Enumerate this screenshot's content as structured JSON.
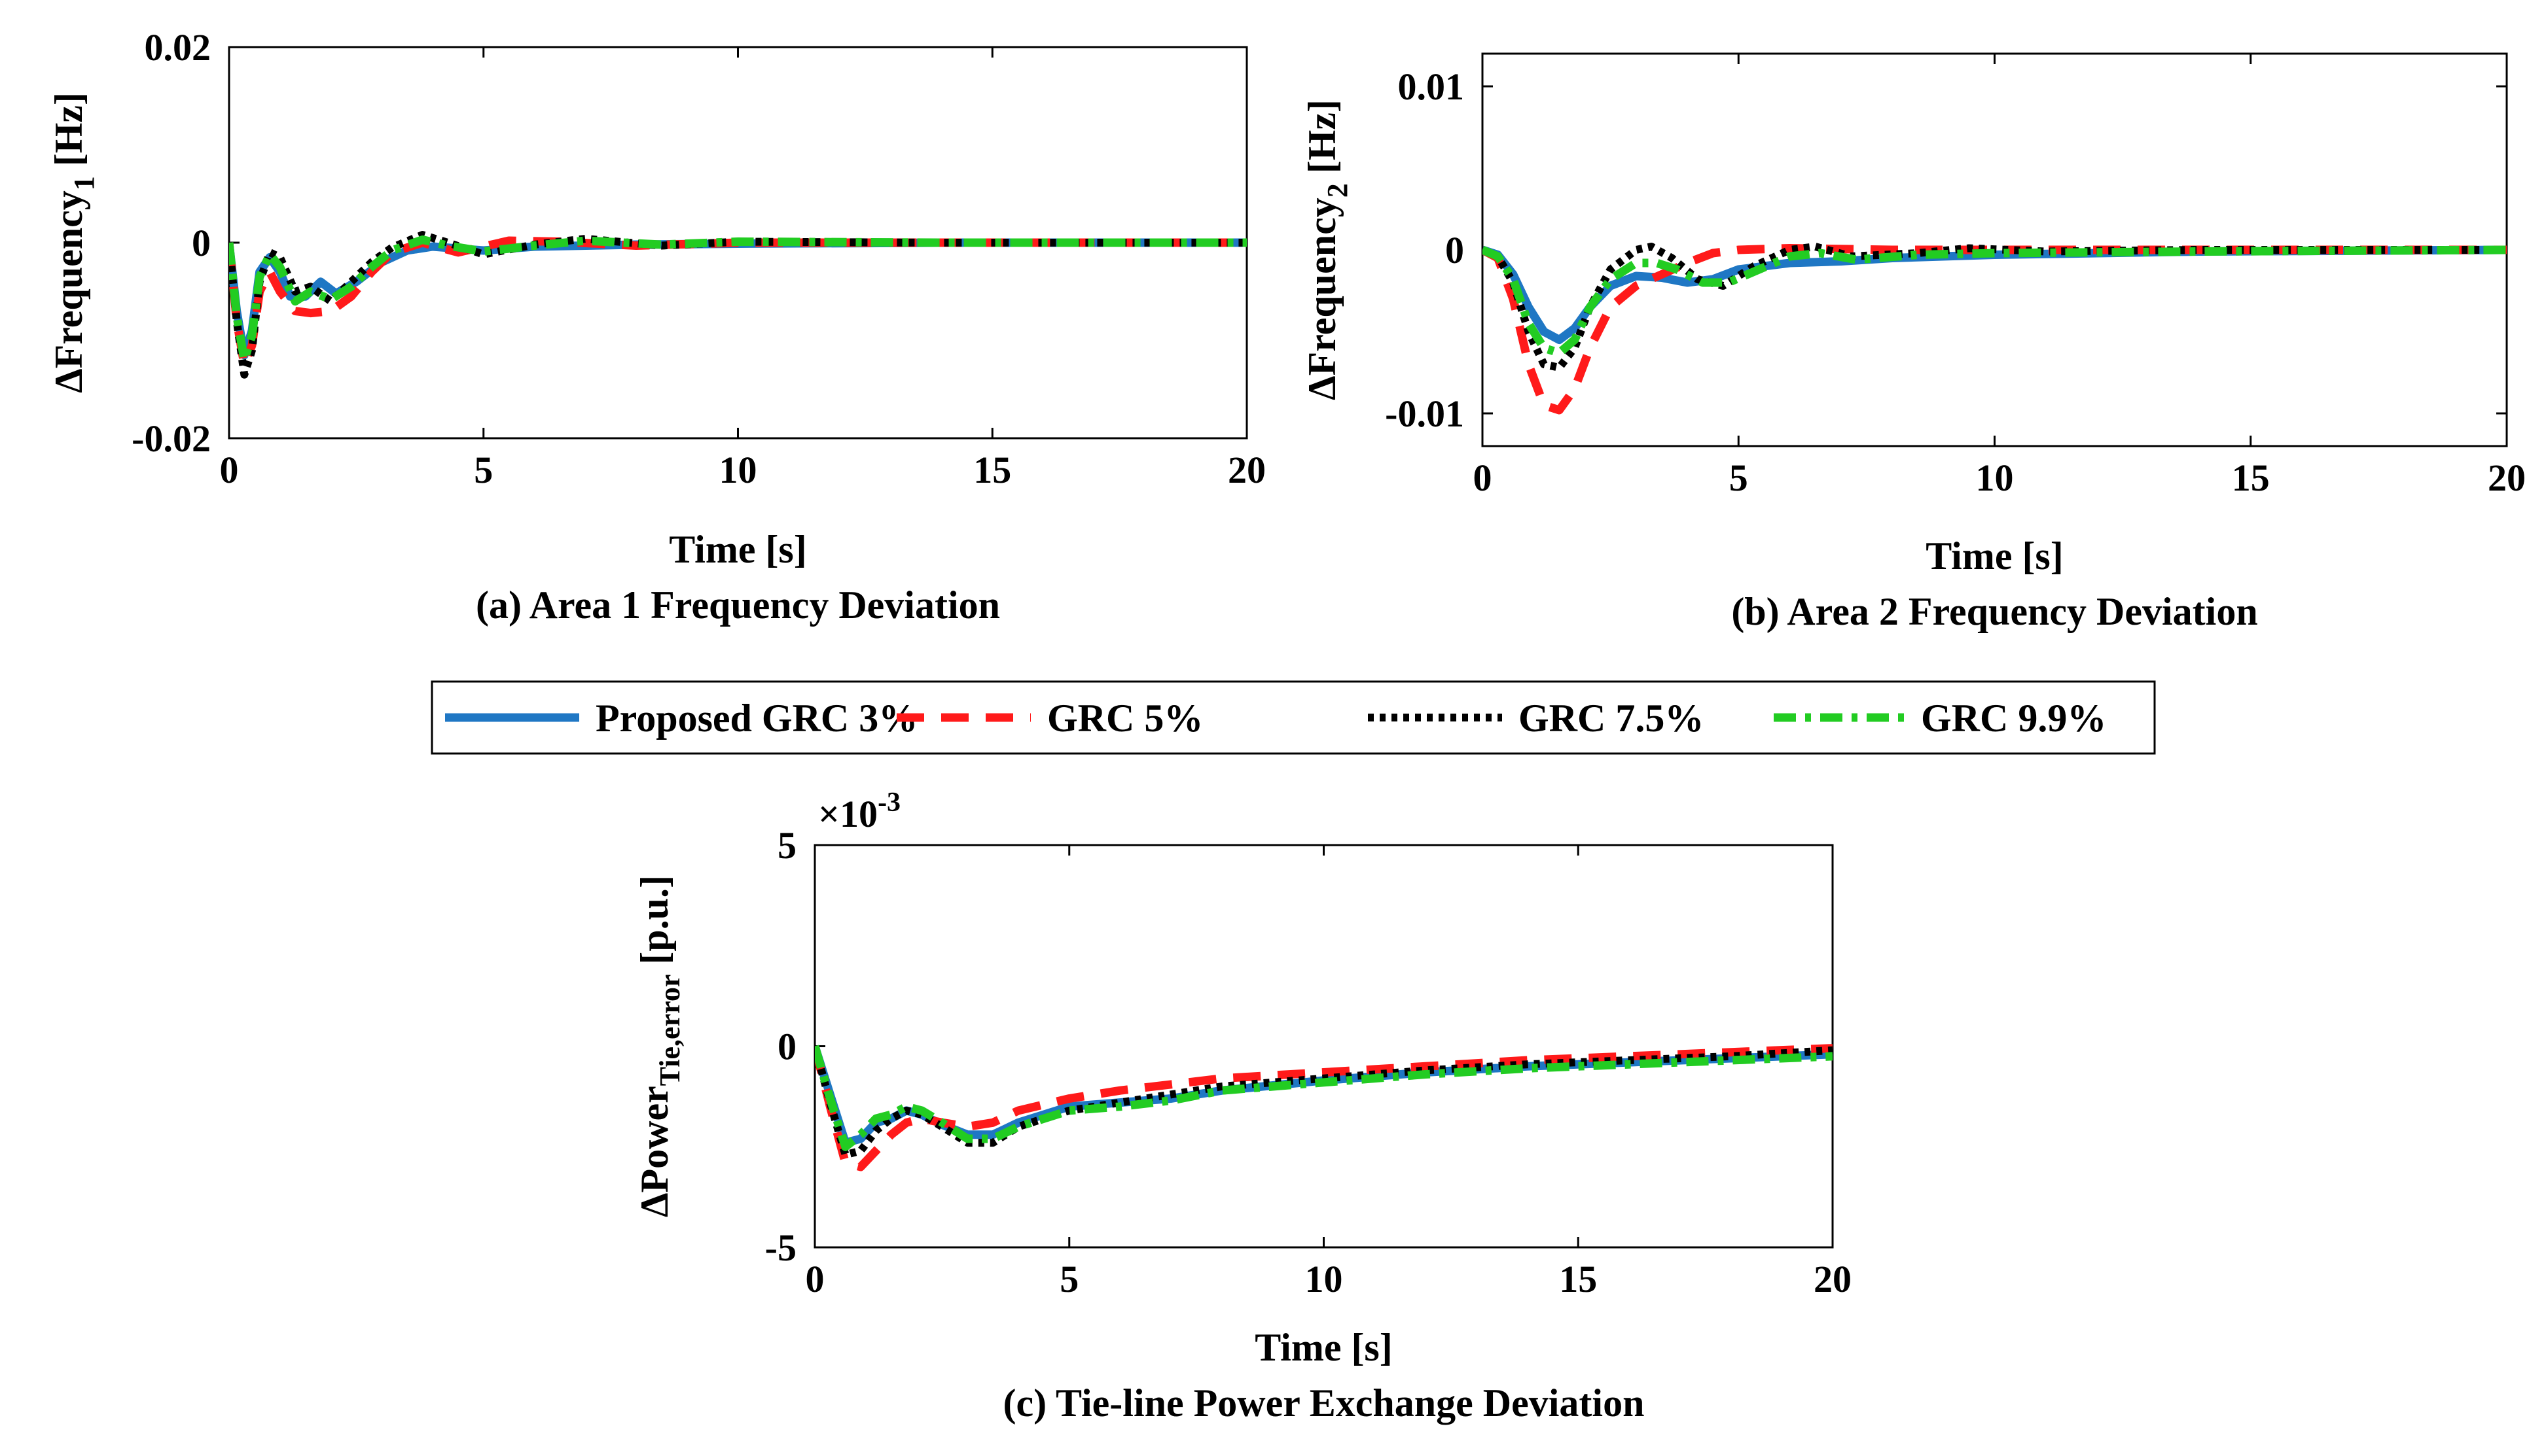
{
  "colors": {
    "proposed": "#1f77c4",
    "grc5": "#ff1a1a",
    "grc75": "#000000",
    "grc99": "#22cc22"
  },
  "legend": {
    "items": [
      {
        "label": "Proposed GRC 3%",
        "style": "solid",
        "color": "#1f77c4"
      },
      {
        "label": "GRC 5%",
        "style": "dashed",
        "color": "#ff1a1a"
      },
      {
        "label": "GRC 7.5%",
        "style": "dotted",
        "color": "#000000"
      },
      {
        "label": "GRC 9.9%",
        "style": "dashdot",
        "color": "#22cc22"
      }
    ]
  },
  "chart_data": [
    {
      "type": "line",
      "title": "(a) Area 1 Frequency Deviation",
      "xlabel": "Time [s]",
      "ylabel": "ΔFrequency",
      "ylabel_sub": "1",
      "ylabel_unit": " [Hz]",
      "xlim": [
        0,
        20
      ],
      "ylim": [
        -0.02,
        0.02
      ],
      "xticks": [
        0,
        5,
        10,
        15,
        20
      ],
      "xtick_labels": [
        "0",
        "5",
        "10",
        "15",
        "20"
      ],
      "yticks": [
        -0.02,
        0,
        0.02
      ],
      "ytick_labels": [
        "-0.02",
        "0",
        "0.02"
      ],
      "exponent_label": "",
      "series": [
        {
          "name": "Proposed GRC 3%",
          "x": [
            0,
            0.15,
            0.3,
            0.45,
            0.6,
            0.8,
            1.0,
            1.2,
            1.5,
            1.8,
            2.1,
            2.5,
            3,
            3.5,
            4,
            5,
            6,
            8,
            10,
            14,
            20
          ],
          "y": [
            0,
            -0.007,
            -0.0115,
            -0.009,
            -0.003,
            -0.0015,
            -0.003,
            -0.0055,
            -0.0055,
            -0.004,
            -0.0052,
            -0.004,
            -0.002,
            -0.0008,
            -0.0004,
            -0.0008,
            -0.0004,
            -0.0002,
            -0.0001,
            0,
            0
          ]
        },
        {
          "name": "GRC 5%",
          "x": [
            0,
            0.15,
            0.3,
            0.45,
            0.6,
            0.8,
            1.0,
            1.3,
            1.6,
            2.0,
            2.4,
            2.8,
            3.2,
            3.8,
            4.5,
            5.5,
            6.5,
            8,
            10,
            14,
            20
          ],
          "y": [
            0,
            -0.008,
            -0.0125,
            -0.0105,
            -0.005,
            -0.003,
            -0.005,
            -0.007,
            -0.0072,
            -0.007,
            -0.0055,
            -0.003,
            -0.001,
            0,
            -0.001,
            0.0002,
            0.0001,
            -0.0003,
            0,
            0,
            0
          ]
        },
        {
          "name": "GRC 7.5%",
          "x": [
            0,
            0.15,
            0.3,
            0.45,
            0.6,
            0.8,
            1.0,
            1.3,
            1.6,
            2.0,
            2.4,
            2.8,
            3.2,
            3.8,
            4.3,
            5.0,
            6.0,
            7.0,
            8.5,
            10,
            14,
            20
          ],
          "y": [
            0,
            -0.008,
            -0.0135,
            -0.011,
            -0.004,
            -0.001,
            -0.0015,
            -0.005,
            -0.0045,
            -0.006,
            -0.004,
            -0.002,
            -0.0005,
            0.0008,
            0,
            -0.0012,
            -0.0002,
            0.0004,
            -0.0003,
            0.0001,
            0,
            0
          ]
        },
        {
          "name": "GRC 9.9%",
          "x": [
            0,
            0.15,
            0.3,
            0.45,
            0.6,
            0.8,
            1.0,
            1.3,
            1.6,
            2.0,
            2.4,
            2.8,
            3.2,
            3.8,
            4.3,
            5.0,
            6.0,
            7.0,
            8.5,
            10,
            14,
            20
          ],
          "y": [
            0,
            -0.0075,
            -0.012,
            -0.0095,
            -0.0035,
            -0.0012,
            -0.0025,
            -0.006,
            -0.005,
            -0.0058,
            -0.0045,
            -0.0025,
            -0.0008,
            0.0003,
            -0.0003,
            -0.0009,
            -0.0003,
            0.0002,
            -0.0002,
            0.0001,
            0,
            0
          ]
        }
      ]
    },
    {
      "type": "line",
      "title": "(b) Area 2 Frequency Deviation",
      "xlabel": "Time [s]",
      "ylabel": "ΔFrequency",
      "ylabel_sub": "2",
      "ylabel_unit": " [Hz]",
      "xlim": [
        0,
        20
      ],
      "ylim": [
        -0.012,
        0.012
      ],
      "xticks": [
        0,
        5,
        10,
        15,
        20
      ],
      "xtick_labels": [
        "0",
        "5",
        "10",
        "15",
        "20"
      ],
      "yticks": [
        -0.01,
        0,
        0.01
      ],
      "ytick_labels": [
        "-0.01",
        "0",
        "0.01"
      ],
      "exponent_label": "",
      "series": [
        {
          "name": "Proposed GRC 3%",
          "x": [
            0,
            0.3,
            0.6,
            0.9,
            1.2,
            1.5,
            1.8,
            2.1,
            2.5,
            3.0,
            3.5,
            4.0,
            4.5,
            5.0,
            6.0,
            7.0,
            8.0,
            10,
            14,
            20
          ],
          "y": [
            0,
            -0.0003,
            -0.0015,
            -0.0035,
            -0.005,
            -0.0055,
            -0.0048,
            -0.0035,
            -0.0022,
            -0.0016,
            -0.0017,
            -0.002,
            -0.0018,
            -0.0012,
            -0.0008,
            -0.0007,
            -0.0005,
            -0.0003,
            -0.0001,
            0
          ]
        },
        {
          "name": "GRC 5%",
          "x": [
            0,
            0.3,
            0.6,
            0.9,
            1.2,
            1.5,
            1.8,
            2.1,
            2.5,
            3.0,
            3.5,
            4.0,
            4.5,
            5.0,
            6.0,
            8.0,
            10,
            14,
            20
          ],
          "y": [
            0,
            -0.0005,
            -0.003,
            -0.007,
            -0.0095,
            -0.0098,
            -0.0085,
            -0.006,
            -0.0035,
            -0.0022,
            -0.0015,
            -0.0008,
            -0.0002,
            0,
            0.0001,
            0,
            0,
            0,
            0
          ]
        },
        {
          "name": "GRC 7.5%",
          "x": [
            0,
            0.3,
            0.6,
            0.9,
            1.2,
            1.5,
            1.8,
            2.1,
            2.5,
            3.0,
            3.3,
            3.7,
            4.2,
            4.7,
            5.3,
            6.0,
            6.5,
            7.2,
            8.5,
            9.5,
            11,
            14,
            20
          ],
          "y": [
            0,
            -0.0004,
            -0.002,
            -0.005,
            -0.007,
            -0.0072,
            -0.006,
            -0.0035,
            -0.0012,
            0,
            0.0002,
            -0.0005,
            -0.0018,
            -0.0022,
            -0.001,
            0,
            0.0002,
            -0.0004,
            -0.0002,
            0.0001,
            -0.0001,
            0,
            0
          ]
        },
        {
          "name": "GRC 9.9%",
          "x": [
            0,
            0.3,
            0.6,
            0.9,
            1.2,
            1.5,
            1.8,
            2.1,
            2.5,
            3.0,
            3.4,
            3.8,
            4.3,
            4.8,
            5.4,
            6.0,
            6.6,
            7.3,
            8.5,
            10,
            14,
            20
          ],
          "y": [
            0,
            -0.0004,
            -0.0018,
            -0.0045,
            -0.006,
            -0.0063,
            -0.0055,
            -0.0035,
            -0.0018,
            -0.0008,
            -0.0008,
            -0.0012,
            -0.002,
            -0.002,
            -0.0012,
            -0.0004,
            -0.0002,
            -0.0006,
            -0.0003,
            -0.0002,
            -0.0001,
            0
          ]
        }
      ]
    },
    {
      "type": "line",
      "title": "(c) Tie-line Power Exchange Deviation",
      "xlabel": "Time [s]",
      "ylabel": "ΔPower",
      "ylabel_sub": "Tie,error",
      "ylabel_unit": " [p.u.]",
      "xlim": [
        0,
        20
      ],
      "ylim": [
        -5,
        5
      ],
      "xticks": [
        0,
        5,
        10,
        15,
        20
      ],
      "xtick_labels": [
        "0",
        "5",
        "10",
        "15",
        "20"
      ],
      "yticks": [
        -5,
        0,
        5
      ],
      "ytick_labels": [
        "-5",
        "0",
        "5"
      ],
      "exponent_label": "×10",
      "exponent_power": "-3",
      "series": [
        {
          "name": "Proposed GRC 3%",
          "x": [
            0,
            0.3,
            0.6,
            0.9,
            1.2,
            1.5,
            1.8,
            2.1,
            2.5,
            3.0,
            3.5,
            4.0,
            5.0,
            6.0,
            7.0,
            8.0,
            10,
            12,
            14,
            16,
            18,
            20
          ],
          "y": [
            0,
            -1.2,
            -2.4,
            -2.3,
            -1.9,
            -1.8,
            -1.6,
            -1.7,
            -1.95,
            -2.2,
            -2.2,
            -1.9,
            -1.5,
            -1.4,
            -1.3,
            -1.1,
            -0.85,
            -0.65,
            -0.5,
            -0.4,
            -0.3,
            -0.2
          ]
        },
        {
          "name": "GRC 5%",
          "x": [
            0,
            0.3,
            0.6,
            0.9,
            1.2,
            1.5,
            1.8,
            2.1,
            2.5,
            3.0,
            3.5,
            4.0,
            5.0,
            6.0,
            7.0,
            8.0,
            10,
            12,
            14,
            16,
            18,
            20
          ],
          "y": [
            0,
            -1.5,
            -2.9,
            -3.0,
            -2.6,
            -2.2,
            -1.9,
            -1.8,
            -1.9,
            -2.0,
            -1.9,
            -1.6,
            -1.3,
            -1.1,
            -0.95,
            -0.8,
            -0.65,
            -0.5,
            -0.35,
            -0.25,
            -0.15,
            -0.05
          ]
        },
        {
          "name": "GRC 7.5%",
          "x": [
            0,
            0.3,
            0.6,
            0.9,
            1.2,
            1.5,
            1.8,
            2.1,
            2.5,
            3.0,
            3.5,
            4.0,
            5.0,
            6.0,
            7.0,
            8.0,
            10,
            12,
            14,
            16,
            18,
            20
          ],
          "y": [
            0,
            -1.4,
            -2.7,
            -2.6,
            -2.1,
            -1.8,
            -1.6,
            -1.7,
            -2.0,
            -2.4,
            -2.4,
            -2.0,
            -1.6,
            -1.4,
            -1.2,
            -1.0,
            -0.8,
            -0.6,
            -0.45,
            -0.35,
            -0.25,
            -0.1
          ]
        },
        {
          "name": "GRC 9.9%",
          "x": [
            0,
            0.3,
            0.6,
            0.9,
            1.2,
            1.5,
            1.8,
            2.1,
            2.5,
            3.0,
            3.5,
            4.0,
            5.0,
            6.0,
            7.0,
            8.0,
            10,
            12,
            14,
            16,
            18,
            20
          ],
          "y": [
            0,
            -1.3,
            -2.5,
            -2.2,
            -1.8,
            -1.7,
            -1.5,
            -1.6,
            -1.9,
            -2.3,
            -2.3,
            -2.0,
            -1.6,
            -1.5,
            -1.35,
            -1.1,
            -0.9,
            -0.7,
            -0.55,
            -0.45,
            -0.35,
            -0.25
          ]
        }
      ]
    }
  ]
}
